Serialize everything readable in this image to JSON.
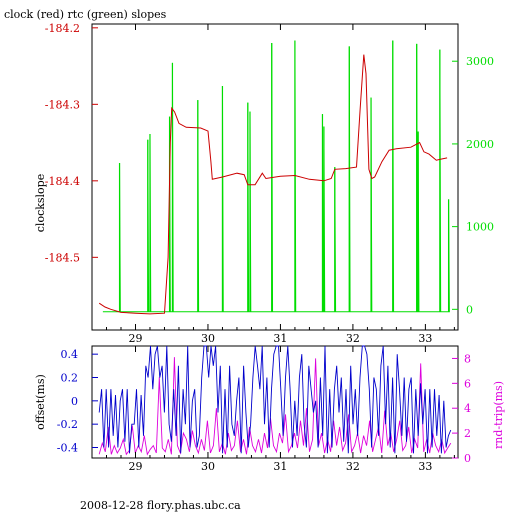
{
  "colors": {
    "clock": "#cc0000",
    "rtc": "#00dd00",
    "offset": "#0000cc",
    "roundtrip": "#dd00dd",
    "axis": "#000000"
  },
  "chart_data": [
    {
      "type": "line",
      "title": "clock (red) rtc (green) slopes",
      "ylabel": "clockslope",
      "x_ticks": [
        "29",
        "30",
        "31",
        "32",
        "33"
      ],
      "xlim": [
        28.4,
        33.45
      ],
      "left_axis": {
        "ticks": [
          "-184.2",
          "-184.3",
          "-184.4",
          "-184.5"
        ],
        "ylim": [
          -184.595,
          -184.195
        ],
        "color": "#cc0000"
      },
      "right_axis": {
        "ticks": [
          "3000",
          "2000",
          "1000",
          "0"
        ],
        "ylim": [
          -250,
          3450
        ],
        "color": "#00dd00"
      },
      "series": [
        {
          "color": "#cc0000",
          "axis": "left",
          "points": [
            [
              28.5,
              -184.56
            ],
            [
              28.58,
              -184.565
            ],
            [
              28.66,
              -184.568
            ],
            [
              28.8,
              -184.572
            ],
            [
              29.0,
              -184.573
            ],
            [
              29.2,
              -184.574
            ],
            [
              29.4,
              -184.573
            ],
            [
              29.45,
              -184.5
            ],
            [
              29.48,
              -184.35
            ],
            [
              29.5,
              -184.305
            ],
            [
              29.54,
              -184.31
            ],
            [
              29.6,
              -184.325
            ],
            [
              29.7,
              -184.33
            ],
            [
              29.9,
              -184.331
            ],
            [
              30.0,
              -184.335
            ],
            [
              30.04,
              -184.375
            ],
            [
              30.06,
              -184.398
            ],
            [
              30.2,
              -184.395
            ],
            [
              30.4,
              -184.39
            ],
            [
              30.5,
              -184.392
            ],
            [
              30.55,
              -184.405
            ],
            [
              30.65,
              -184.405
            ],
            [
              30.75,
              -184.39
            ],
            [
              30.8,
              -184.397
            ],
            [
              31.0,
              -184.394
            ],
            [
              31.2,
              -184.393
            ],
            [
              31.4,
              -184.398
            ],
            [
              31.6,
              -184.4
            ],
            [
              31.7,
              -184.397
            ],
            [
              31.75,
              -184.385
            ],
            [
              31.9,
              -184.384
            ],
            [
              32.05,
              -184.382
            ],
            [
              32.1,
              -184.305
            ],
            [
              32.15,
              -184.235
            ],
            [
              32.18,
              -184.26
            ],
            [
              32.22,
              -184.385
            ],
            [
              32.26,
              -184.397
            ],
            [
              32.3,
              -184.395
            ],
            [
              32.4,
              -184.375
            ],
            [
              32.5,
              -184.36
            ],
            [
              32.6,
              -184.358
            ],
            [
              32.8,
              -184.356
            ],
            [
              32.92,
              -184.35
            ],
            [
              32.98,
              -184.362
            ],
            [
              33.05,
              -184.365
            ],
            [
              33.15,
              -184.373
            ],
            [
              33.2,
              -184.372
            ],
            [
              33.3,
              -184.37
            ]
          ]
        },
        {
          "color": "#00dd00",
          "axis": "right",
          "baseline": -30,
          "spikes": [
            [
              28.78,
              1770
            ],
            [
              29.17,
              2050
            ],
            [
              29.2,
              2120
            ],
            [
              29.47,
              2330
            ],
            [
              29.51,
              2980
            ],
            [
              29.86,
              2530
            ],
            [
              30.2,
              2700
            ],
            [
              30.55,
              2500
            ],
            [
              30.58,
              2390
            ],
            [
              30.88,
              3220
            ],
            [
              31.2,
              3250
            ],
            [
              31.58,
              2360
            ],
            [
              31.6,
              2210
            ],
            [
              31.75,
              1720
            ],
            [
              31.95,
              3180
            ],
            [
              32.25,
              2560
            ],
            [
              32.55,
              3250
            ],
            [
              32.88,
              3210
            ],
            [
              32.9,
              2150
            ],
            [
              33.2,
              3140
            ],
            [
              33.32,
              1330
            ]
          ]
        }
      ]
    },
    {
      "type": "line",
      "ylabel": "offset(ms)",
      "ylabel_right": "rnd-trip(ms)",
      "x_ticks": [
        "29",
        "30",
        "31",
        "32",
        "33"
      ],
      "xlim": [
        28.4,
        33.45
      ],
      "left_axis": {
        "ticks": [
          "0.4",
          "0.2",
          "0",
          "-0.2",
          "-0.4"
        ],
        "ylim": [
          -0.49,
          0.47
        ],
        "color": "#0000cc"
      },
      "right_axis": {
        "ticks": [
          "8",
          "6",
          "4",
          "2",
          "0"
        ],
        "ylim": [
          0,
          9.0
        ],
        "color": "#dd00dd"
      },
      "series": [
        {
          "color": "#0000cc",
          "axis": "left",
          "values": [
            -0.1,
            0.1,
            -0.4,
            0.1,
            -0.4,
            0.1,
            -0.3,
            0.05,
            -0.4,
            0.0,
            0.1,
            -0.35,
            0.1,
            -0.45,
            -0.2,
            -0.2,
            0.1,
            -0.4,
            0.05,
            -0.3,
            0.3,
            0.2,
            0.6,
            0.1,
            0.4,
            0.7,
            0.2,
            0.3,
            -0.1,
            0.5,
            -0.2,
            -0.35,
            0.1,
            -0.3,
            0.3,
            -0.45,
            0.1,
            -0.2,
            0.5,
            -0.4,
            0.0,
            0.1,
            -0.4,
            -0.3,
            0.2,
            0.5,
            0.6,
            0.2,
            0.7,
            0.3,
            0.5,
            -0.1,
            0.3,
            -0.45,
            0.1,
            -0.4,
            0.3,
            -0.2,
            -0.3,
            0.0,
            0.2,
            -0.45,
            0.3,
            -0.1,
            -0.4,
            -0.2,
            0.2,
            0.5,
            0.3,
            0.1,
            0.6,
            -0.2,
            0.2,
            -0.4,
            0.1,
            0.4,
            0.7,
            0.5,
            0.1,
            -0.3,
            0.2,
            0.5,
            0.1,
            -0.4,
            0.0,
            -0.3,
            0.2,
            0.4,
            -0.2,
            -0.4,
            0.3,
            0.1,
            -0.1,
            0.0,
            -0.4,
            0.2,
            -0.3,
            0.5,
            -0.45,
            0.1,
            -0.4,
            0.1,
            0.3,
            -0.1,
            0.2,
            -0.35,
            0.1,
            -0.45,
            0.3,
            -0.2,
            0.1,
            -0.3,
            0.2,
            0.6,
            0.9,
            0.4,
            0.1,
            -0.4,
            0.2,
            0.1,
            -0.3,
            0.3,
            0.5,
            -0.2,
            0.3,
            -0.4,
            0.2,
            -0.45,
            0.4,
            0.1,
            -0.3,
            0.2,
            -0.35,
            0.1,
            0.2,
            -0.45,
            0.1,
            -0.3,
            0.15,
            -0.2,
            0.1,
            -0.45,
            0.1,
            -0.4,
            0.1,
            -0.3,
            0.05,
            -0.45,
            0.0,
            -0.4,
            -0.3,
            -0.25
          ]
        },
        {
          "color": "#dd00dd",
          "axis": "right",
          "values": [
            0.3,
            1.2,
            0.5,
            2.5,
            0.3,
            1.0,
            0.4,
            0.8,
            1.5,
            0.3,
            0.6,
            2.6,
            0.4,
            1.0,
            0.5,
            1.8,
            0.3,
            0.7,
            1.0,
            0.4,
            6.5,
            0.8,
            0.5,
            1.5,
            0.3,
            8.1,
            1.0,
            0.4,
            2.0,
            1.5,
            0.5,
            2.2,
            1.0,
            0.4,
            1.5,
            0.6,
            3.0,
            0.4,
            1.0,
            4.0,
            0.5,
            1.2,
            0.3,
            2.0,
            0.6,
            1.0,
            3.0,
            0.5,
            1.5,
            0.3,
            2.5,
            1.0,
            0.5,
            1.5,
            0.4,
            2.0,
            0.8,
            3.2,
            1.0,
            0.5,
            2.0,
            1.2,
            3.5,
            0.5,
            1.0,
            2.0,
            0.8,
            3.0,
            1.0,
            4.0,
            0.5,
            1.5,
            8.0,
            1.0,
            2.0,
            0.4,
            1.5,
            0.5,
            3.0,
            1.0,
            2.5,
            0.6,
            1.2,
            3.5,
            0.5,
            1.0,
            2.0,
            0.4,
            1.8,
            1.0,
            3.0,
            0.5,
            1.5,
            2.5,
            0.4,
            3.8,
            1.0,
            2.0,
            0.5,
            1.5,
            3.0,
            0.6,
            1.0,
            2.5,
            0.4,
            1.5,
            0.8,
            7.6,
            0.5,
            1.5,
            0.4,
            2.0,
            1.0,
            0.5,
            1.5,
            0.4,
            0.8,
            1.2
          ]
        }
      ]
    }
  ],
  "footer": "2008-12-28 flory.phas.ubc.ca"
}
